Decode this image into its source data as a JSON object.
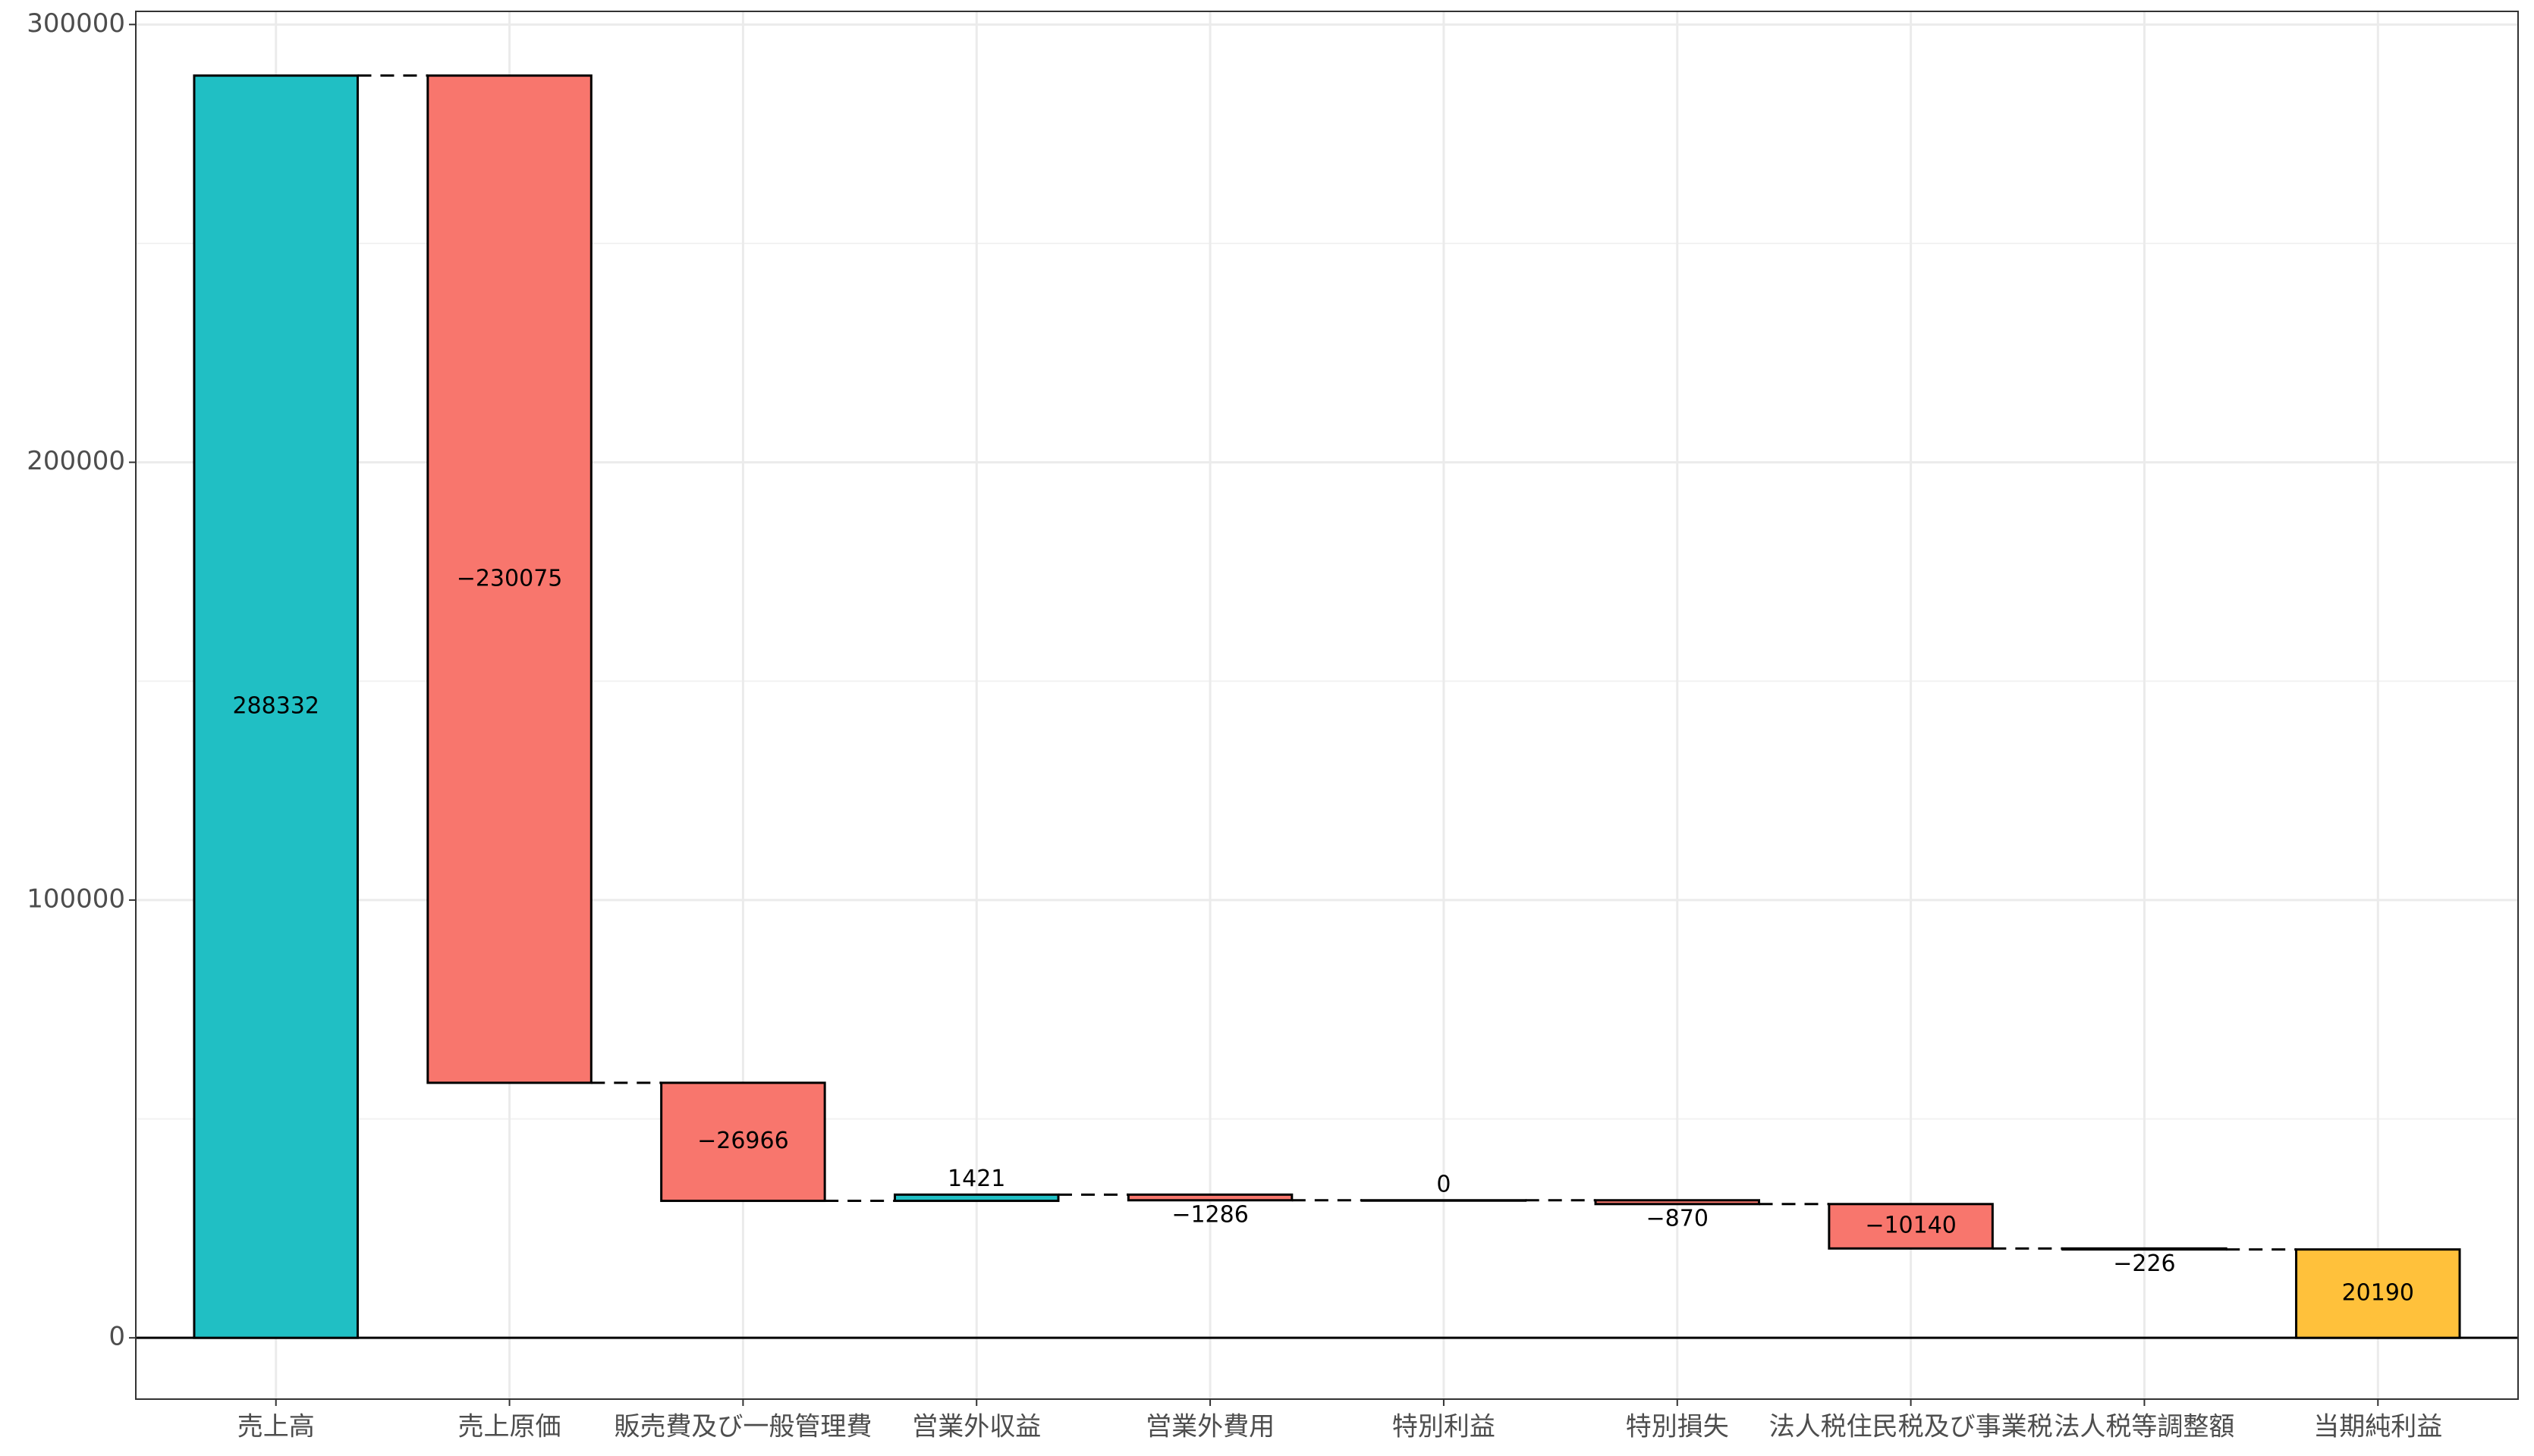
{
  "chart_data": {
    "type": "waterfall",
    "categories": [
      "売上高",
      "売上原価",
      "販売費及び一般管理費",
      "営業外収益",
      "営業外費用",
      "特別利益",
      "特別損失",
      "法人税住民税及び事業税",
      "法人税等調整額",
      "当期純利益"
    ],
    "values": [
      288332,
      -230075,
      -26966,
      1421,
      -1286,
      0,
      -870,
      -10140,
      -226,
      20190
    ],
    "value_labels": [
      "288332",
      "−230075",
      "−26966",
      "1421",
      "−1286",
      "0",
      "−870",
      "−10140",
      "−226",
      "20190"
    ],
    "measure": [
      "relative",
      "relative",
      "relative",
      "relative",
      "relative",
      "relative",
      "relative",
      "relative",
      "relative",
      "total"
    ],
    "colors": {
      "increase": "#20BFC4",
      "decrease": "#F8766D",
      "total": "#FFC13B"
    },
    "ylim": [
      -14000,
      303000
    ],
    "yticks": [
      0,
      100000,
      200000,
      300000
    ],
    "grid": true
  }
}
